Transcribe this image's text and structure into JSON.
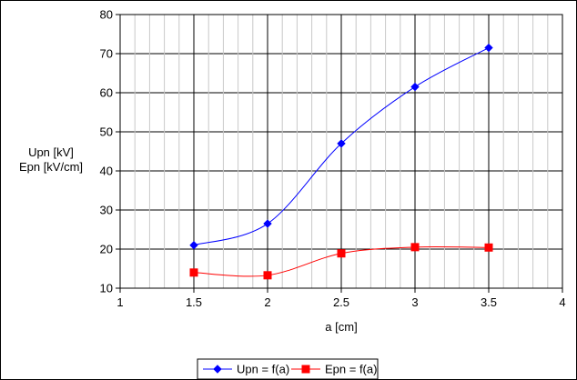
{
  "chart_data": {
    "type": "line",
    "title": "",
    "xlabel": "a [cm]",
    "ylabel_lines": [
      "Upn [kV]",
      "Epn [kV/cm]"
    ],
    "xlim": [
      1,
      4
    ],
    "ylim": [
      10,
      80
    ],
    "x_ticks": [
      "1",
      "1.5",
      "2",
      "2.5",
      "3",
      "3.5",
      "4"
    ],
    "y_ticks": [
      "10",
      "20",
      "30",
      "40",
      "50",
      "60",
      "70",
      "80"
    ],
    "grid": true,
    "legend_position": "bottom",
    "series": [
      {
        "name": "Upn = f(a)",
        "color": "#0000ff",
        "marker": "diamond",
        "x": [
          1.5,
          2,
          2.5,
          3,
          3.5
        ],
        "y": [
          21,
          26.5,
          47,
          61.5,
          71.5
        ]
      },
      {
        "name": "Epn = f(a)",
        "color": "#ff0000",
        "marker": "square",
        "x": [
          1.5,
          2,
          2.5,
          3,
          3.5
        ],
        "y": [
          14,
          13.3,
          18.9,
          20.5,
          20.4
        ]
      }
    ]
  }
}
